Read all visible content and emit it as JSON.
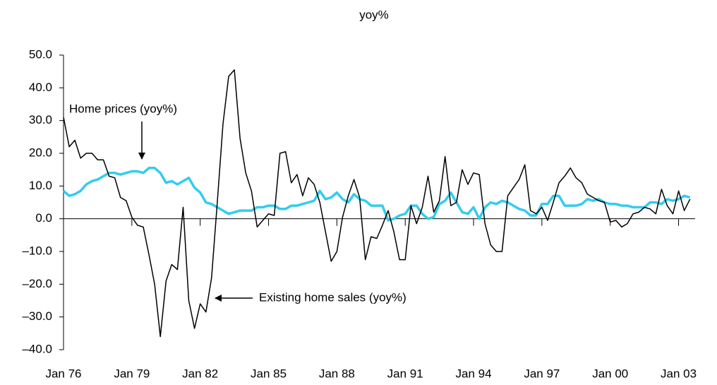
{
  "chart_data": {
    "type": "line",
    "title": "yoy%",
    "categories": [
      "Jan 76",
      null,
      null,
      null,
      null,
      null,
      null,
      null,
      null,
      null,
      null,
      null,
      "Jan 79",
      null,
      null,
      null,
      null,
      null,
      null,
      null,
      null,
      null,
      null,
      null,
      "Jan 82",
      null,
      null,
      null,
      null,
      null,
      null,
      null,
      null,
      null,
      null,
      null,
      "Jan 85",
      null,
      null,
      null,
      null,
      null,
      null,
      null,
      null,
      null,
      null,
      null,
      "Jan 88",
      null,
      null,
      null,
      null,
      null,
      null,
      null,
      null,
      null,
      null,
      null,
      "Jan 91",
      null,
      null,
      null,
      null,
      null,
      null,
      null,
      null,
      null,
      null,
      null,
      "Jan 94",
      null,
      null,
      null,
      null,
      null,
      null,
      null,
      null,
      null,
      null,
      null,
      "Jan 97",
      null,
      null,
      null,
      null,
      null,
      null,
      null,
      null,
      null,
      null,
      null,
      "Jan 00",
      null,
      null,
      null,
      null,
      null,
      null,
      null,
      null,
      null,
      null,
      null,
      "Jan 03",
      null,
      null
    ],
    "series": [
      {
        "name": "Existing home sales (yoy%)",
        "color": "#000000",
        "values": [
          31,
          22,
          24,
          18.5,
          20,
          20,
          18,
          18,
          13,
          12.5,
          6.5,
          5.5,
          0.5,
          -2,
          -2.5,
          -11,
          -20,
          -36,
          -19,
          -14,
          -15.5,
          3.5,
          -25,
          -33.5,
          -26,
          -28.5,
          -18,
          5,
          29,
          43.5,
          45.5,
          24.5,
          14,
          8.5,
          -2.5,
          -0.5,
          1.5,
          1,
          20,
          20.5,
          11,
          13.5,
          7,
          12.5,
          10.5,
          5,
          -4,
          -13,
          -10,
          0.5,
          7,
          12,
          6.5,
          -12.5,
          -5.5,
          -6,
          -2,
          2.5,
          -4,
          -12.5,
          -12.5,
          4,
          -1.5,
          3.5,
          13,
          2,
          5.5,
          19,
          4,
          5,
          15,
          10.5,
          14,
          13.5,
          -1.5,
          -8,
          -10,
          -10,
          7,
          9.5,
          12,
          16.5,
          2.5,
          1.5,
          3.5,
          -0.5,
          5,
          11,
          13,
          15.5,
          12.5,
          11,
          7.5,
          6.5,
          5.5,
          5,
          -1,
          -0.5,
          -2.5,
          -1.5,
          1.5,
          2,
          3.5,
          3,
          1.5,
          9,
          4,
          1.5,
          8.5,
          2.5,
          6
        ]
      },
      {
        "name": "Home prices (yoy%)",
        "color": "#33ccee",
        "values": [
          8.5,
          7,
          7.5,
          8.5,
          10.5,
          11.5,
          12,
          13,
          14,
          14,
          13.5,
          14,
          14.5,
          14.5,
          14,
          15.5,
          15.5,
          14,
          11,
          11.5,
          10.5,
          11.5,
          12.5,
          9.5,
          8,
          5,
          4.5,
          3.5,
          2.5,
          1.5,
          2,
          2.5,
          2.5,
          2.5,
          3.5,
          3.5,
          4,
          4,
          3,
          3,
          4,
          4,
          4.5,
          5,
          5.5,
          8.5,
          6,
          6.5,
          8,
          6,
          5,
          7.5,
          6,
          5.5,
          4,
          4,
          4,
          -0.5,
          0,
          1,
          1.5,
          4,
          4,
          1.5,
          0,
          0.5,
          4.5,
          5.5,
          8,
          5,
          2,
          1.5,
          3.5,
          0,
          3.5,
          5,
          4.5,
          5.5,
          5,
          4,
          3,
          2.5,
          1,
          1,
          4.5,
          4.5,
          7,
          7,
          4,
          4,
          4,
          4.5,
          6,
          5.5,
          6,
          5,
          4.5,
          4.5,
          4,
          4,
          3.5,
          3.5,
          3.5,
          5,
          5,
          4.5,
          6,
          5.5,
          6,
          7,
          6.5
        ]
      }
    ],
    "ylim": [
      -40,
      50
    ],
    "yticks": [
      {
        "value": -40,
        "label": "–40.0"
      },
      {
        "value": -30,
        "label": "–30.0"
      },
      {
        "value": -20,
        "label": "–20.0"
      },
      {
        "value": -10,
        "label": "–10.0"
      },
      {
        "value": 0,
        "label": "0.0"
      },
      {
        "value": 10,
        "label": "10.0"
      },
      {
        "value": 20,
        "label": "20.0"
      },
      {
        "value": 30,
        "label": "30.0"
      },
      {
        "value": 40,
        "label": "40.0"
      },
      {
        "value": 50,
        "label": "50.0"
      }
    ],
    "grid": false
  }
}
